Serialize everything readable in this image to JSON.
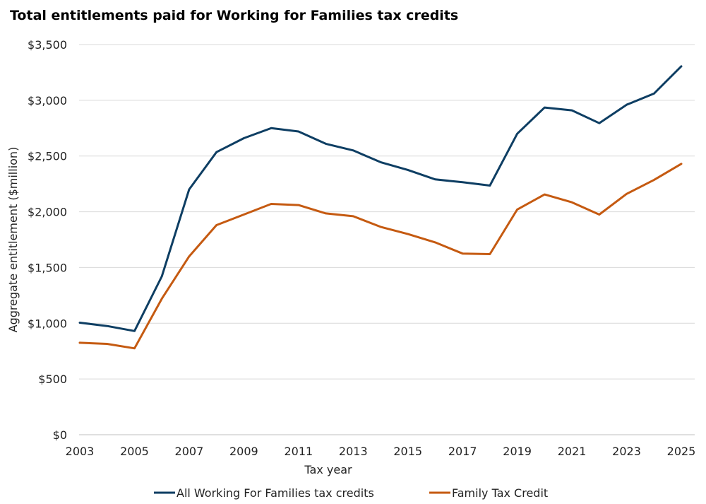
{
  "chart_data": {
    "type": "line",
    "title": "Total entitlements paid for Working for Families tax credits",
    "xlabel": "Tax year",
    "ylabel": "Aggregate entitlement ($million)",
    "x": [
      2003,
      2004,
      2005,
      2006,
      2007,
      2008,
      2009,
      2010,
      2011,
      2012,
      2013,
      2014,
      2015,
      2016,
      2017,
      2018,
      2019,
      2020,
      2021,
      2022,
      2023,
      2024,
      2025
    ],
    "x_tick_labels": [
      "2003",
      "2005",
      "2007",
      "2009",
      "2011",
      "2013",
      "2015",
      "2017",
      "2019",
      "2021",
      "2023",
      "2025"
    ],
    "ylim": [
      0,
      3500
    ],
    "y_ticks": [
      0,
      500,
      1000,
      1500,
      2000,
      2500,
      3000,
      3500
    ],
    "y_tick_labels": [
      "$0",
      "$500",
      "$1,000",
      "$1,500",
      "$2,000",
      "$2,500",
      "$3,000",
      "$3,500"
    ],
    "grid": true,
    "legend_position": "bottom",
    "series": [
      {
        "name": "All Working For Families tax credits",
        "color": "#0e3e63",
        "values": [
          1005,
          975,
          930,
          1420,
          2200,
          2535,
          2660,
          2750,
          2720,
          2610,
          2550,
          2445,
          2375,
          2290,
          2265,
          2235,
          2700,
          2935,
          2910,
          2795,
          2960,
          3060,
          3305
        ]
      },
      {
        "name": "Family Tax Credit",
        "color": "#c55a11",
        "values": [
          825,
          815,
          775,
          1220,
          1600,
          1880,
          1975,
          2070,
          2060,
          1985,
          1960,
          1865,
          1800,
          1725,
          1625,
          1620,
          2020,
          2155,
          2085,
          1975,
          2160,
          2285,
          2430
        ]
      }
    ]
  }
}
